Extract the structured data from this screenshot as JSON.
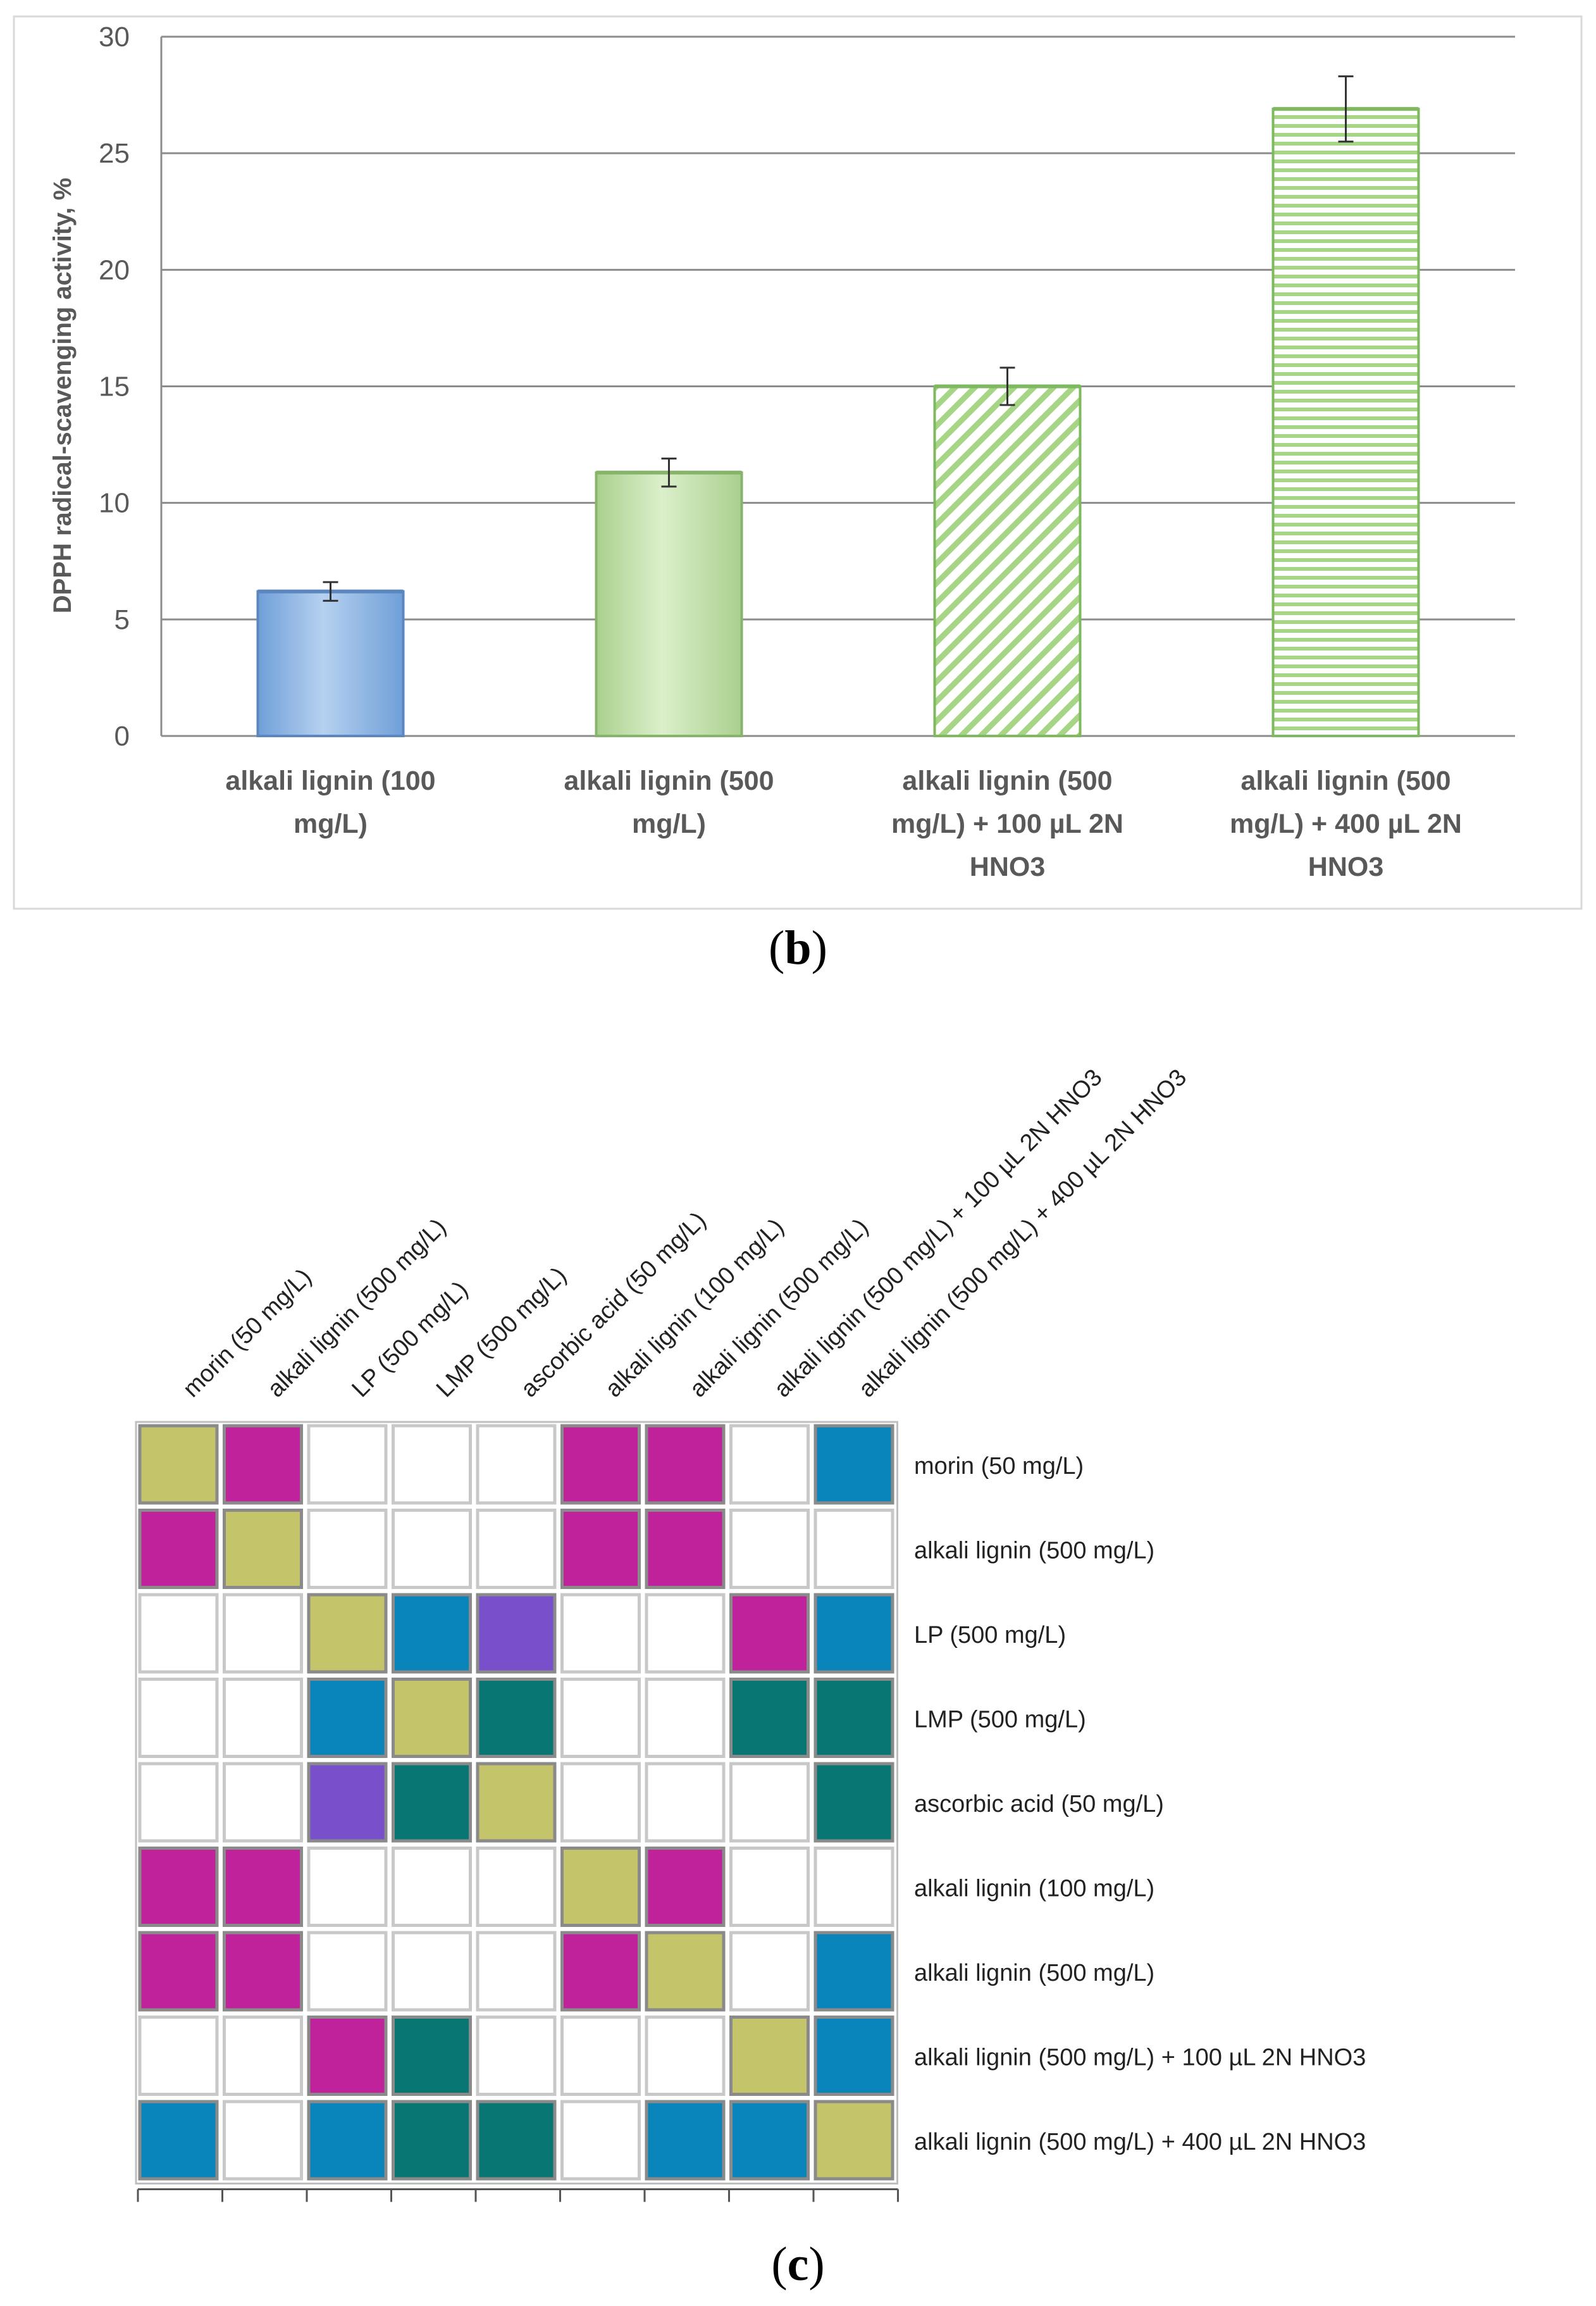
{
  "chart_data": [
    {
      "type": "bar",
      "panel": "(b)",
      "ylabel": "DPPH radical-scavenging activity, %",
      "xlabel": "",
      "ylim": [
        0,
        30
      ],
      "yticks": [
        0,
        5,
        10,
        15,
        20,
        25,
        30
      ],
      "grid": true,
      "categories": [
        [
          "alkali lignin (100",
          "mg/L)"
        ],
        [
          "alkali lignin (500",
          "mg/L)"
        ],
        [
          "alkali lignin (500",
          "mg/L) + 100 µL 2N",
          "HNO3"
        ],
        [
          "alkali lignin (500",
          "mg/L) + 400 µL 2N",
          "HNO3"
        ]
      ],
      "values": [
        6.2,
        11.3,
        15.0,
        26.9
      ],
      "errors": [
        0.4,
        0.6,
        0.8,
        1.4
      ],
      "fills": [
        "solid-blue",
        "solid-green",
        "diagonal-green",
        "horizontal-green"
      ],
      "colors": {
        "blue": "#8db4e2",
        "green": "#c4e0a8",
        "stripe": "#9bd07a",
        "grid": "#8c8c8c"
      }
    },
    {
      "type": "heatmap",
      "panel": "(c)",
      "labels": [
        "morin (50 mg/L)",
        "alkali lignin (500 mg/L)",
        "LP (500 mg/L)",
        "LMP (500 mg/L)",
        "ascorbic acid (50 mg/L)",
        "alkali lignin (100 mg/L)",
        "alkali lignin (500 mg/L)",
        "alkali lignin (500 mg/L) + 100 µL 2N HNO3",
        "alkali lignin (500 mg/L) + 400 µL 2N HNO3"
      ],
      "palette": {
        "D": "#c4c46a",
        "M": "#c0229c",
        "B": "#0a85bb",
        "P": "#7a4fcc",
        "T": "#087672",
        "W": "#ffffff"
      },
      "cells": [
        [
          "D",
          "M",
          "W",
          "W",
          "W",
          "M",
          "M",
          "W",
          "B"
        ],
        [
          "M",
          "D",
          "W",
          "W",
          "W",
          "M",
          "M",
          "W",
          "W"
        ],
        [
          "W",
          "W",
          "D",
          "B",
          "P",
          "W",
          "W",
          "M",
          "B"
        ],
        [
          "W",
          "W",
          "B",
          "D",
          "T",
          "W",
          "W",
          "T",
          "T"
        ],
        [
          "W",
          "W",
          "P",
          "T",
          "D",
          "W",
          "W",
          "W",
          "T"
        ],
        [
          "M",
          "M",
          "W",
          "W",
          "W",
          "D",
          "M",
          "W",
          "W"
        ],
        [
          "M",
          "M",
          "W",
          "W",
          "W",
          "M",
          "D",
          "W",
          "B"
        ],
        [
          "W",
          "W",
          "M",
          "T",
          "W",
          "W",
          "W",
          "D",
          "B"
        ],
        [
          "B",
          "W",
          "B",
          "T",
          "T",
          "W",
          "B",
          "B",
          "D"
        ]
      ]
    }
  ],
  "panel_labels": {
    "b": "b",
    "c": "c"
  }
}
